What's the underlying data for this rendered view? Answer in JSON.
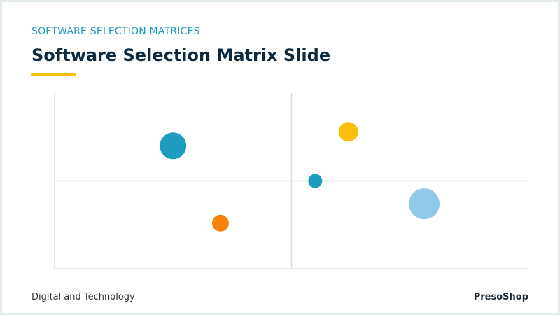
{
  "header": {
    "kicker": "SOFTWARE SELECTION MATRICES",
    "title": "Software Selection Matrix Slide"
  },
  "footer": {
    "left": "Digital and Technology",
    "right": "PresoShop"
  },
  "chart_data": {
    "type": "bubble",
    "x": [
      2.5,
      3.5,
      6.2,
      5.5,
      7.8
    ],
    "values": [
      7,
      2.6,
      7.8,
      5,
      3.7
    ],
    "sizes": [
      19,
      12,
      14,
      10,
      22
    ],
    "colors": [
      "#1e9cbf",
      "#f7830e",
      "#fbbf0b",
      "#1e9cbf",
      "#8ecae6"
    ],
    "xlim": [
      0,
      10
    ],
    "ylim": [
      0,
      10
    ],
    "quadrant_lines": true
  }
}
